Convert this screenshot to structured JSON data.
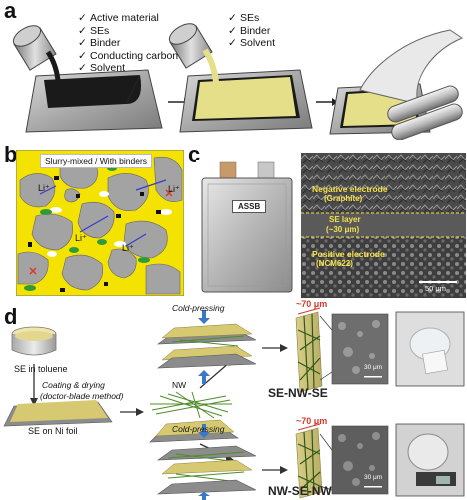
{
  "panels": {
    "a": "a",
    "b": "b",
    "c": "c",
    "d": "d"
  },
  "panel_a": {
    "list1": [
      "Active material",
      "SEs",
      "Binder",
      "Conducting carbon",
      "Solvent"
    ],
    "list2": [
      "SEs",
      "Binder",
      "Solvent"
    ],
    "check_glyph": "✓"
  },
  "panel_b": {
    "title": "Slurry-mixed / With binders",
    "ion_label": "Li⁺"
  },
  "panel_c": {
    "cell_label": "ASSB",
    "negative_electrode": "Negative electrode",
    "graphite": "(Graphite)",
    "se_layer": "SE layer",
    "se_thickness": "(~30 μm)",
    "positive_electrode": "Positive electrode",
    "ncm": "(NCM622)",
    "scale_bar": "50 μm"
  },
  "panel_d": {
    "se_in_toluene": "SE in toluene",
    "coating": "Coating & drying",
    "doctor_blade": "(doctor-blade method)",
    "se_on_ni": "SE on Ni foil",
    "cold_pressing_top": "Cold-pressing",
    "cold_pressing_bottom": "Cold-pressing",
    "nw": "NW",
    "thickness_top": "~70 μm",
    "thickness_bottom": "~70 μm",
    "label_top": "SE-NW-SE",
    "label_bottom": "NW-SE-NW",
    "scale_top": "30 μm",
    "scale_bottom": "30 μm"
  },
  "colors": {
    "black_slurry": "#1a1a1a",
    "yellow_slurry": "#e6df8a",
    "foil": "#b8b8b8",
    "sem_bg": "#4a4a4a",
    "sem_label": "#f5e04a",
    "arrow_blue": "#3a78c9",
    "red_mark": "#d43a2a",
    "nw_green": "#4f8c2a"
  }
}
